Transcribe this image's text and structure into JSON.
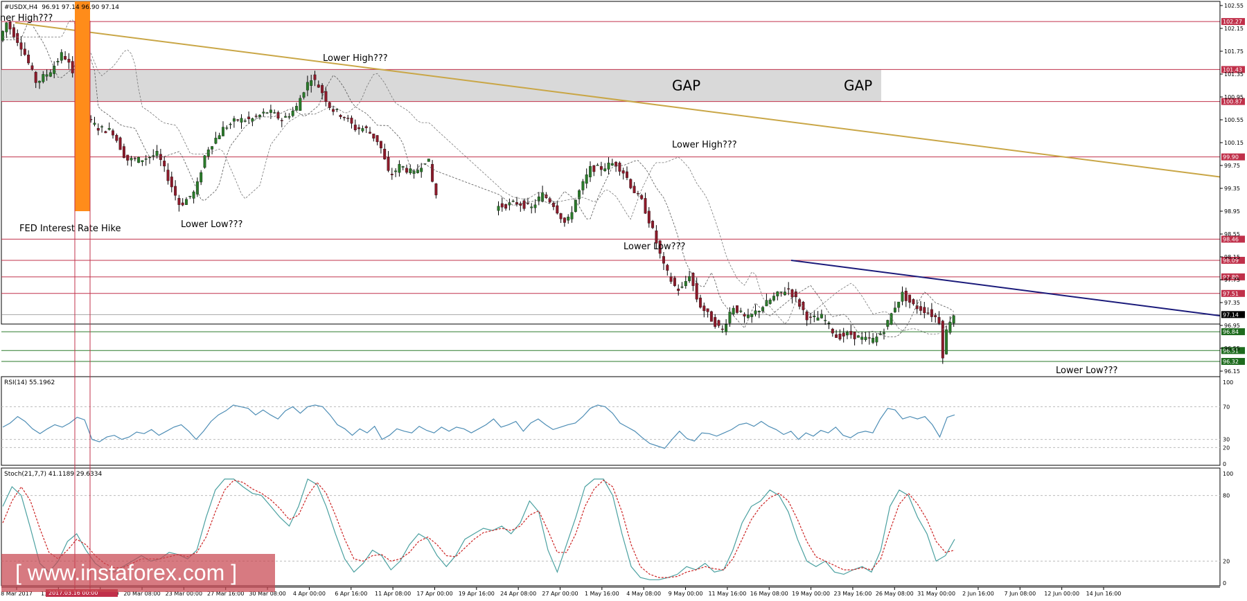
{
  "header": {
    "symbol": "#USDX,H4",
    "quote": "96.91 97.14 96.90 97.14",
    "rsi_label": "RSI(14) 55.1962",
    "stoch_label": "Stoch(21,7,7) 41.1189 29.6334"
  },
  "watermark": "[ www.instaforex.com ]",
  "highlight_date_label": "2017.03.16 00:00",
  "colors": {
    "bull": "#2a7a2a",
    "bear": "#8b1a2a",
    "resistance": "#c0304a",
    "support": "#2a7a2a",
    "trendline_long": "#c9a646",
    "trendline_short": "#1a1a7a",
    "fed_bar": "#ff8c1a",
    "gap_fill": "#d9d9d9",
    "rsi_line": "#4d8db5",
    "stoch_main": "#4aa0a0",
    "stoch_signal": "#cc2222"
  },
  "chart_data": [
    {
      "type": "candlestick",
      "symbol": "#USDX",
      "timeframe": "H4",
      "ylim": [
        96.15,
        102.55
      ],
      "y_ticks": [
        "102.55",
        "102.15",
        "101.75",
        "101.35",
        "100.95",
        "100.55",
        "100.15",
        "99.75",
        "99.35",
        "98.95",
        "98.55",
        "98.15",
        "97.75",
        "97.35",
        "96.95",
        "96.55",
        "96.15"
      ],
      "x_ticks": [
        "8 Mar 2017",
        "13 Mar 2017",
        "16 Mar 20:00",
        "20 Mar 08:00",
        "23 Mar 00:00",
        "27 Mar 16:00",
        "30 Mar 08:00",
        "4 Apr 00:00",
        "6 Apr 16:00",
        "11 Apr 08:00",
        "17 Apr 00:00",
        "19 Apr 16:00",
        "24 Apr 08:00",
        "27 Apr 00:00",
        "1 May 16:00",
        "4 May 08:00",
        "9 May 00:00",
        "11 May 16:00",
        "16 May 08:00",
        "19 May 00:00",
        "23 May 16:00",
        "26 May 08:00",
        "31 May 00:00",
        "2 Jun 16:00",
        "7 Jun 08:00",
        "12 Jun 00:00",
        "14 Jun 16:00"
      ],
      "price_path": [
        [
          0,
          101.9
        ],
        [
          12,
          102.25
        ],
        [
          35,
          101.8
        ],
        [
          55,
          101.2
        ],
        [
          75,
          101.4
        ],
        [
          92,
          101.7
        ],
        [
          100,
          101.6
        ],
        [
          108,
          101.3
        ],
        [
          112,
          100.7
        ],
        [
          125,
          100.6
        ],
        [
          145,
          100.4
        ],
        [
          165,
          100.35
        ],
        [
          185,
          99.85
        ],
        [
          205,
          99.85
        ],
        [
          230,
          99.95
        ],
        [
          250,
          99.4
        ],
        [
          262,
          99.05
        ],
        [
          285,
          99.3
        ],
        [
          300,
          100.0
        ],
        [
          325,
          100.4
        ],
        [
          345,
          100.55
        ],
        [
          365,
          100.55
        ],
        [
          390,
          100.7
        ],
        [
          410,
          100.55
        ],
        [
          430,
          100.75
        ],
        [
          440,
          101.05
        ],
        [
          452,
          101.3
        ],
        [
          465,
          101.1
        ],
        [
          480,
          100.75
        ],
        [
          500,
          100.6
        ],
        [
          515,
          100.4
        ],
        [
          530,
          100.4
        ],
        [
          550,
          100.15
        ],
        [
          565,
          99.55
        ],
        [
          580,
          99.75
        ],
        [
          600,
          99.6
        ],
        [
          620,
          99.9
        ],
        [
          630,
          99.25
        ],
        [
          650,
          99.1
        ],
        [
          670,
          99.05
        ],
        [
          690,
          99.2
        ],
        [
          710,
          99.0
        ],
        [
          730,
          99.05
        ],
        [
          750,
          99.1
        ],
        [
          770,
          99.0
        ],
        [
          785,
          99.25
        ],
        [
          800,
          99.1
        ],
        [
          820,
          98.7
        ],
        [
          835,
          99.2
        ],
        [
          855,
          99.7
        ],
        [
          870,
          99.7
        ],
        [
          890,
          99.8
        ],
        [
          905,
          99.6
        ],
        [
          915,
          99.35
        ],
        [
          930,
          99.1
        ],
        [
          945,
          98.6
        ],
        [
          960,
          98.0
        ],
        [
          975,
          97.65
        ],
        [
          985,
          97.55
        ],
        [
          998,
          97.85
        ],
        [
          1010,
          97.35
        ],
        [
          1030,
          97.05
        ],
        [
          1045,
          96.85
        ],
        [
          1060,
          97.3
        ],
        [
          1080,
          97.05
        ],
        [
          1100,
          97.25
        ],
        [
          1120,
          97.45
        ],
        [
          1140,
          97.6
        ],
        [
          1155,
          97.35
        ],
        [
          1170,
          97.05
        ],
        [
          1190,
          97.1
        ],
        [
          1210,
          96.75
        ],
        [
          1230,
          96.8
        ],
        [
          1250,
          96.7
        ],
        [
          1265,
          96.7
        ],
        [
          1280,
          96.9
        ],
        [
          1295,
          97.3
        ],
        [
          1305,
          97.5
        ],
        [
          1320,
          97.3
        ],
        [
          1340,
          97.2
        ],
        [
          1358,
          97.05
        ],
        [
          1363,
          96.4
        ],
        [
          1370,
          96.95
        ],
        [
          1378,
          97.14
        ]
      ],
      "horizontal_levels": [
        {
          "value": "102.27",
          "kind": "resistance"
        },
        {
          "value": "101.43",
          "kind": "resistance"
        },
        {
          "value": "100.87",
          "kind": "resistance"
        },
        {
          "value": "99.90",
          "kind": "resistance"
        },
        {
          "value": "98.46",
          "kind": "resistance"
        },
        {
          "value": "98.09",
          "kind": "resistance"
        },
        {
          "value": "97.80",
          "kind": "resistance"
        },
        {
          "value": "97.51",
          "kind": "resistance"
        },
        {
          "value": "97.14",
          "kind": "current"
        },
        {
          "value": "96.84",
          "kind": "support"
        },
        {
          "value": "96.51",
          "kind": "support"
        },
        {
          "value": "96.32",
          "kind": "support"
        }
      ],
      "gap_zone": {
        "from": 100.87,
        "to": 101.43,
        "labels": [
          "GAP",
          "GAP"
        ]
      },
      "annotations": [
        {
          "text": "ner High???"
        },
        {
          "text": "Lower High???"
        },
        {
          "text": "Lower High???"
        },
        {
          "text": "Lower Low???"
        },
        {
          "text": "Lower Low???"
        },
        {
          "text": "Lower Low???"
        },
        {
          "text": "FED Interest Rate Hike"
        }
      ]
    },
    {
      "type": "line",
      "name": "RSI(14)",
      "ylim": [
        0,
        100
      ],
      "y_ticks": [
        "100",
        "70",
        "30",
        "20",
        "0"
      ],
      "values": [
        45,
        50,
        58,
        52,
        43,
        37,
        43,
        48,
        45,
        50,
        57,
        54,
        30,
        27,
        33,
        35,
        30,
        33,
        39,
        37,
        42,
        35,
        40,
        45,
        48,
        40,
        30,
        40,
        52,
        60,
        65,
        72,
        70,
        68,
        60,
        66,
        60,
        55,
        65,
        70,
        62,
        70,
        72,
        70,
        60,
        48,
        43,
        35,
        43,
        38,
        46,
        30,
        35,
        43,
        40,
        38,
        46,
        41,
        38,
        45,
        40,
        45,
        43,
        38,
        43,
        48,
        55,
        45,
        48,
        52,
        40,
        50,
        55,
        48,
        42,
        45,
        48,
        50,
        58,
        68,
        72,
        70,
        62,
        50,
        45,
        40,
        32,
        25,
        22,
        19,
        30,
        40,
        31,
        28,
        38,
        37,
        34,
        38,
        42,
        48,
        50,
        46,
        52,
        46,
        42,
        36,
        40,
        30,
        38,
        34,
        41,
        38,
        45,
        35,
        32,
        38,
        40,
        38,
        55,
        68,
        66,
        55,
        58,
        55,
        58,
        48,
        33,
        57,
        60
      ]
    },
    {
      "type": "line",
      "name": "Stoch(21,7,7)",
      "ylim": [
        0,
        100
      ],
      "y_ticks": [
        "100",
        "80",
        "20",
        "0"
      ],
      "series": [
        {
          "name": "main",
          "values": [
            70,
            88,
            80,
            50,
            18,
            10,
            20,
            38,
            45,
            30,
            18,
            12,
            10,
            15,
            20,
            25,
            20,
            22,
            28,
            26,
            22,
            30,
            60,
            85,
            95,
            95,
            88,
            82,
            80,
            70,
            60,
            52,
            70,
            95,
            90,
            70,
            45,
            22,
            10,
            18,
            30,
            25,
            12,
            20,
            35,
            45,
            40,
            25,
            15,
            25,
            40,
            45,
            50,
            48,
            52,
            45,
            55,
            75,
            65,
            30,
            10,
            35,
            60,
            88,
            95,
            95,
            80,
            45,
            15,
            5,
            3,
            3,
            5,
            8,
            15,
            12,
            18,
            10,
            12,
            30,
            55,
            70,
            75,
            85,
            80,
            65,
            40,
            20,
            15,
            20,
            10,
            8,
            12,
            15,
            10,
            30,
            70,
            85,
            80,
            60,
            45,
            20,
            25,
            40
          ]
        },
        {
          "name": "signal",
          "values": [
            55,
            75,
            88,
            75,
            50,
            28,
            22,
            30,
            40,
            35,
            25,
            18,
            14,
            14,
            18,
            22,
            22,
            22,
            24,
            26,
            24,
            28,
            42,
            65,
            85,
            94,
            92,
            86,
            82,
            76,
            68,
            58,
            62,
            80,
            92,
            82,
            62,
            40,
            22,
            20,
            25,
            26,
            20,
            22,
            28,
            38,
            42,
            35,
            25,
            24,
            32,
            40,
            46,
            48,
            50,
            48,
            52,
            62,
            66,
            48,
            28,
            28,
            45,
            70,
            86,
            94,
            88,
            65,
            35,
            15,
            8,
            5,
            5,
            6,
            10,
            12,
            15,
            13,
            12,
            22,
            40,
            58,
            70,
            78,
            82,
            75,
            58,
            38,
            24,
            20,
            16,
            12,
            12,
            14,
            12,
            22,
            48,
            72,
            82,
            72,
            58,
            38,
            28,
            30
          ]
        }
      ]
    }
  ]
}
